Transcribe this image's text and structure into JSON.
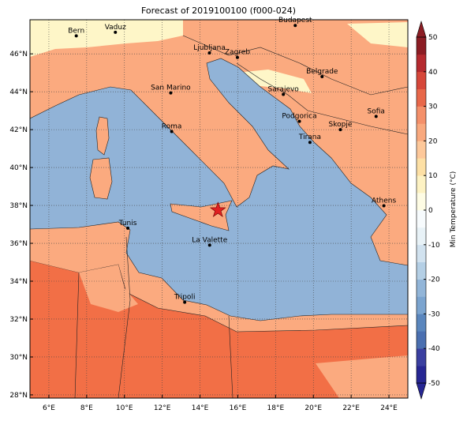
{
  "chart_data": {
    "type": "map",
    "title": "Forecast of 2019100100 (f000-024)",
    "xlim": [
      5,
      25
    ],
    "ylim": [
      27.83,
      47.8
    ],
    "xticks": [
      {
        "value": 6,
        "label": "6°E"
      },
      {
        "value": 8,
        "label": "8°E"
      },
      {
        "value": 10,
        "label": "10°E"
      },
      {
        "value": 12,
        "label": "12°E"
      },
      {
        "value": 14,
        "label": "14°E"
      },
      {
        "value": 16,
        "label": "16°E"
      },
      {
        "value": 18,
        "label": "18°E"
      },
      {
        "value": 20,
        "label": "20°E"
      },
      {
        "value": 22,
        "label": "22°E"
      },
      {
        "value": 24,
        "label": "24°E"
      }
    ],
    "yticks": [
      {
        "value": 28,
        "label": "28°N"
      },
      {
        "value": 30,
        "label": "30°N"
      },
      {
        "value": 32,
        "label": "32°N"
      },
      {
        "value": 34,
        "label": "34°N"
      },
      {
        "value": 36,
        "label": "36°N"
      },
      {
        "value": 38,
        "label": "38°N"
      },
      {
        "value": 40,
        "label": "40°N"
      },
      {
        "value": 42,
        "label": "42°N"
      },
      {
        "value": 44,
        "label": "44°N"
      },
      {
        "value": 46,
        "label": "46°N"
      }
    ],
    "grid": true,
    "cities": [
      {
        "name": "Bern",
        "lon": 7.45,
        "lat": 46.95
      },
      {
        "name": "Vaduz",
        "lon": 9.52,
        "lat": 47.14
      },
      {
        "name": "Budapest",
        "lon": 19.04,
        "lat": 47.5
      },
      {
        "name": "Ljubljana",
        "lon": 14.5,
        "lat": 46.05
      },
      {
        "name": "Zagreb",
        "lon": 15.98,
        "lat": 45.81
      },
      {
        "name": "Belgrade",
        "lon": 20.46,
        "lat": 44.8
      },
      {
        "name": "San Marino",
        "lon": 12.45,
        "lat": 43.94
      },
      {
        "name": "Sarajevo",
        "lon": 18.41,
        "lat": 43.86
      },
      {
        "name": "Sofia",
        "lon": 23.32,
        "lat": 42.7
      },
      {
        "name": "Roma",
        "lon": 12.5,
        "lat": 41.9
      },
      {
        "name": "Podgorica",
        "lon": 19.26,
        "lat": 42.44
      },
      {
        "name": "Skopje",
        "lon": 21.43,
        "lat": 42.0
      },
      {
        "name": "Tirana",
        "lon": 19.82,
        "lat": 41.33
      },
      {
        "name": "Athens",
        "lon": 23.73,
        "lat": 37.98
      },
      {
        "name": "Tunis",
        "lon": 10.18,
        "lat": 36.8
      },
      {
        "name": "La Valette",
        "lon": 14.51,
        "lat": 35.9
      },
      {
        "name": "Tripoli",
        "lon": 13.19,
        "lat": 32.89
      }
    ],
    "star": {
      "lon": 14.95,
      "lat": 37.75,
      "color": "#e02020"
    },
    "colorbar": {
      "label": "Min Temperature (°C)",
      "lim": [
        -50,
        50
      ],
      "ticks": [
        -50,
        -40,
        -30,
        -20,
        -10,
        0,
        10,
        20,
        30,
        40,
        50
      ],
      "colors": [
        "#262693",
        "#3a3fa0",
        "#4a6fb0",
        "#5a86bd",
        "#7ba4cf",
        "#92b5d8",
        "#b4cfe5",
        "#d1e2ef",
        "#e8f2f7",
        "#f7fbfd",
        "#fefce4",
        "#fdf2c3",
        "#fde0a5",
        "#fdc89a",
        "#f9a97e",
        "#f4906a",
        "#e8684a",
        "#d6473a",
        "#b52a2f",
        "#8c1d24"
      ]
    }
  }
}
